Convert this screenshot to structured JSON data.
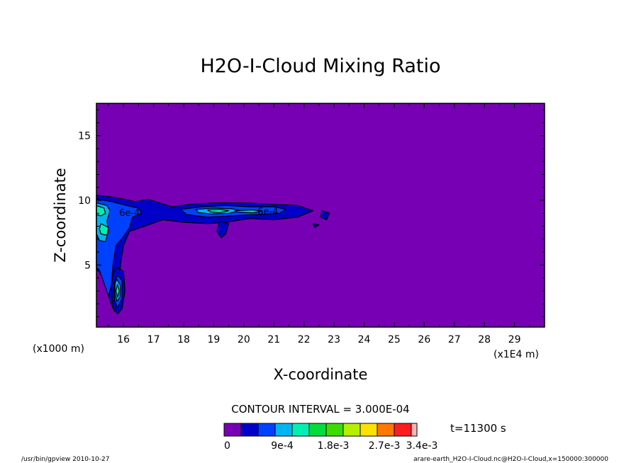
{
  "chart_data": {
    "type": "heatmap",
    "subtype": "filled-contour",
    "title": "H2O-I-Cloud Mixing Ratio",
    "xlabel": "X-coordinate",
    "ylabel": "Z-coordinate",
    "x_unit_label": "(x1E4 m)",
    "y_unit_label": "(x1000 m)",
    "xlim": [
      15.1,
      30.0
    ],
    "ylim": [
      0.2,
      17.5
    ],
    "x_ticks": [
      16,
      17,
      18,
      19,
      20,
      21,
      22,
      23,
      24,
      25,
      26,
      27,
      28,
      29
    ],
    "y_ticks": [
      5,
      10,
      15
    ],
    "contour_interval_text": "CONTOUR INTERVAL = 3.000E-04",
    "time_text": "t=11300 s",
    "colorbar": {
      "colors": [
        "#7700b5",
        "#0000c8",
        "#0040ff",
        "#00b4f0",
        "#00f0b4",
        "#00dc3c",
        "#3cdc00",
        "#b4f000",
        "#ffe100",
        "#ff7800",
        "#ff1e1e",
        "#ffb4b4"
      ],
      "labels": [
        "0",
        "9e-4",
        "1.8e-3",
        "2.7e-3",
        "3.4e-3"
      ],
      "label_values": [
        0,
        0.0009,
        0.0018,
        0.0027,
        0.0034
      ]
    },
    "contour_labels": [
      {
        "text": "6e-4",
        "x": 16.2,
        "z": 8.8
      },
      {
        "text": "6e-4",
        "x": 20.8,
        "z": 8.9
      }
    ],
    "regions": [
      {
        "level": 1,
        "points": [
          [
            15.1,
            10.4
          ],
          [
            15.5,
            10.3
          ],
          [
            16.0,
            10.1
          ],
          [
            16.4,
            9.9
          ],
          [
            16.8,
            10.1
          ],
          [
            17.2,
            9.8
          ],
          [
            17.6,
            9.5
          ],
          [
            18.2,
            9.7
          ],
          [
            19.0,
            9.8
          ],
          [
            20.0,
            9.8
          ],
          [
            21.0,
            9.7
          ],
          [
            21.8,
            9.6
          ],
          [
            22.3,
            9.2
          ],
          [
            21.8,
            8.7
          ],
          [
            21.0,
            8.5
          ],
          [
            20.2,
            8.6
          ],
          [
            19.4,
            8.3
          ],
          [
            18.8,
            8.2
          ],
          [
            18.0,
            8.3
          ],
          [
            17.3,
            8.5
          ],
          [
            16.7,
            8.0
          ],
          [
            16.2,
            7.6
          ],
          [
            16.0,
            6.5
          ],
          [
            15.9,
            5.0
          ],
          [
            15.85,
            3.5
          ],
          [
            15.9,
            2.0
          ],
          [
            15.7,
            1.4
          ],
          [
            15.55,
            2.2
          ],
          [
            15.4,
            3.5
          ],
          [
            15.2,
            4.5
          ],
          [
            15.1,
            4.6
          ]
        ]
      },
      {
        "level": 1,
        "points": [
          [
            15.8,
            4.8
          ],
          [
            16.0,
            4.5
          ],
          [
            16.05,
            3.0
          ],
          [
            15.95,
            1.6
          ],
          [
            15.8,
            1.2
          ],
          [
            15.65,
            1.8
          ],
          [
            15.6,
            3.2
          ],
          [
            15.65,
            4.4
          ]
        ]
      },
      {
        "level": 1,
        "points": [
          [
            19.2,
            8.4
          ],
          [
            19.5,
            8.2
          ],
          [
            19.4,
            7.4
          ],
          [
            19.25,
            7.1
          ],
          [
            19.1,
            7.6
          ]
        ]
      },
      {
        "level": 1,
        "points": [
          [
            22.6,
            9.2
          ],
          [
            22.85,
            9.0
          ],
          [
            22.75,
            8.5
          ],
          [
            22.55,
            8.7
          ]
        ]
      },
      {
        "level": 1,
        "points": [
          [
            22.3,
            8.2
          ],
          [
            22.5,
            8.1
          ],
          [
            22.35,
            7.9
          ]
        ]
      },
      {
        "level": 2,
        "points": [
          [
            15.1,
            10.1
          ],
          [
            15.6,
            9.9
          ],
          [
            16.1,
            9.6
          ],
          [
            16.5,
            9.4
          ],
          [
            16.6,
            9.0
          ],
          [
            16.3,
            8.7
          ],
          [
            16.2,
            7.9
          ],
          [
            16.0,
            7.2
          ],
          [
            15.75,
            6.5
          ],
          [
            15.65,
            5.0
          ],
          [
            15.6,
            3.5
          ],
          [
            15.5,
            2.6
          ],
          [
            15.35,
            3.6
          ],
          [
            15.2,
            4.6
          ],
          [
            15.1,
            4.8
          ]
        ]
      },
      {
        "level": 2,
        "points": [
          [
            17.9,
            9.3
          ],
          [
            18.6,
            9.5
          ],
          [
            19.4,
            9.6
          ],
          [
            20.2,
            9.5
          ],
          [
            21.0,
            9.5
          ],
          [
            21.4,
            9.3
          ],
          [
            21.2,
            9.0
          ],
          [
            20.4,
            8.9
          ],
          [
            19.6,
            8.8
          ],
          [
            18.8,
            8.7
          ],
          [
            18.1,
            8.9
          ]
        ]
      },
      {
        "level": 2,
        "points": [
          [
            15.8,
            4.2
          ],
          [
            15.95,
            3.8
          ],
          [
            15.95,
            2.4
          ],
          [
            15.8,
            1.7
          ],
          [
            15.7,
            2.3
          ],
          [
            15.7,
            3.6
          ]
        ]
      },
      {
        "level": 3,
        "points": [
          [
            15.1,
            9.8
          ],
          [
            15.45,
            9.6
          ],
          [
            15.55,
            9.2
          ],
          [
            15.45,
            8.4
          ],
          [
            15.5,
            7.6
          ],
          [
            15.4,
            6.8
          ],
          [
            15.2,
            6.9
          ],
          [
            15.1,
            7.4
          ]
        ]
      },
      {
        "level": 3,
        "points": [
          [
            18.4,
            9.3
          ],
          [
            19.0,
            9.4
          ],
          [
            19.6,
            9.35
          ],
          [
            19.9,
            9.2
          ],
          [
            19.5,
            9.0
          ],
          [
            18.9,
            8.95
          ],
          [
            18.5,
            9.05
          ]
        ]
      },
      {
        "level": 3,
        "points": [
          [
            15.78,
            3.9
          ],
          [
            15.9,
            3.4
          ],
          [
            15.88,
            2.5
          ],
          [
            15.78,
            2.2
          ],
          [
            15.72,
            2.8
          ],
          [
            15.72,
            3.6
          ]
        ]
      },
      {
        "level": 4,
        "points": [
          [
            15.1,
            9.6
          ],
          [
            15.35,
            9.4
          ],
          [
            15.4,
            9.0
          ],
          [
            15.25,
            8.8
          ],
          [
            15.1,
            8.9
          ]
        ]
      },
      {
        "level": 4,
        "points": [
          [
            15.25,
            8.2
          ],
          [
            15.5,
            7.9
          ],
          [
            15.45,
            7.3
          ],
          [
            15.25,
            7.4
          ],
          [
            15.2,
            7.8
          ]
        ]
      },
      {
        "level": 4,
        "points": [
          [
            18.8,
            9.25
          ],
          [
            19.2,
            9.3
          ],
          [
            19.5,
            9.2
          ],
          [
            19.2,
            9.05
          ],
          [
            18.9,
            9.1
          ]
        ]
      },
      {
        "level": 4,
        "points": [
          [
            19.7,
            9.2
          ],
          [
            20.3,
            9.25
          ],
          [
            20.6,
            9.15
          ],
          [
            20.3,
            9.05
          ],
          [
            19.8,
            9.1
          ]
        ]
      },
      {
        "level": 4,
        "points": [
          [
            15.8,
            3.5
          ],
          [
            15.86,
            3.0
          ],
          [
            15.8,
            2.5
          ],
          [
            15.75,
            3.0
          ]
        ]
      }
    ]
  },
  "footer": {
    "left": "/usr/bin/gpview  2010-10-27",
    "right": "arare-earth_H2O-I-Cloud.nc@H2O-I-Cloud,x=150000:300000"
  }
}
